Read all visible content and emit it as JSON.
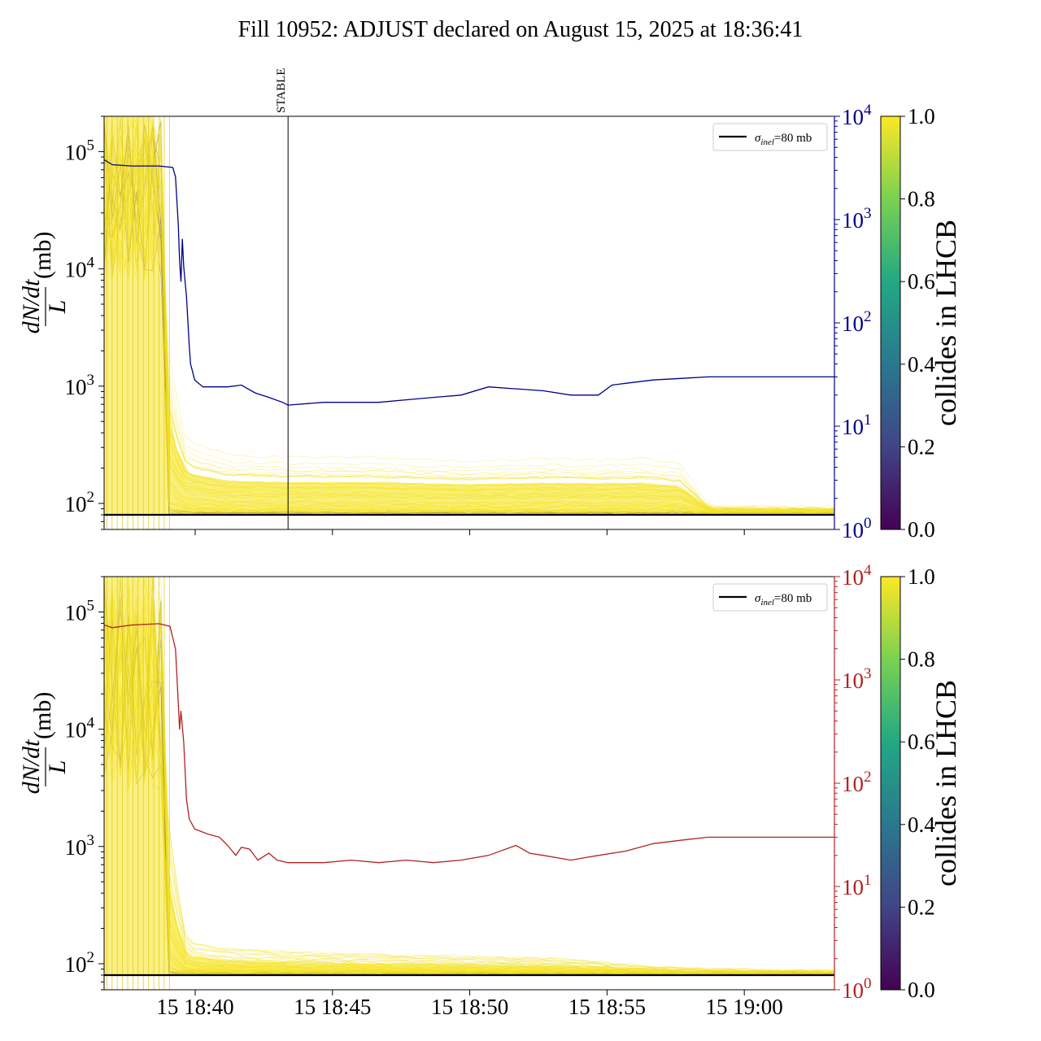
{
  "title": "Fill 10952: ADJUST declared on August 15, 2025 at 18:36:41",
  "ylabel": {
    "numerator": "dN/dt",
    "denominator": "L",
    "unit": "(mb)"
  },
  "legend_label": "σinel=80 mb",
  "legend_label_parts": {
    "sigma": "σ",
    "sub": "inel",
    "rest": "=80 mb"
  },
  "colorbar_label": "collides in LHCB",
  "colorbar_ticks": [
    "0.0",
    "0.2",
    "0.4",
    "0.6",
    "0.8",
    "1.0"
  ],
  "x_ticks": [
    "15 18:40",
    "15 18:45",
    "15 18:50",
    "15 18:55",
    "15 19:00"
  ],
  "left_ticks": {
    "exp": [
      "2",
      "3",
      "4",
      "5"
    ]
  },
  "right_ticks": {
    "exp": [
      "0",
      "1",
      "2",
      "3",
      "4"
    ]
  },
  "annotation": "STABLE",
  "colors": {
    "top_right_axis": "#00008b",
    "bottom_right_axis": "#b22222",
    "reference_line": "#000000",
    "viridis": [
      "#440154",
      "#414487",
      "#2a788e",
      "#22a884",
      "#7ad151",
      "#fde725"
    ]
  },
  "chart_data": [
    {
      "type": "line",
      "panel": "top",
      "x_unit": "minutes after 18:36:41",
      "xlim": [
        0,
        26.6
      ],
      "ylim_left": [
        60,
        200000
      ],
      "ylim_left_scale": "log",
      "ylim_right": [
        1,
        10000
      ],
      "ylim_right_scale": "log",
      "reference_line_y": 80,
      "stable_marker_x": 6.7,
      "bunch_band": {
        "x_end": 2.7,
        "range_pre": [
          8000,
          200000
        ],
        "envelope_max": [
          200000,
          200000,
          3000,
          500,
          350,
          330,
          330,
          300,
          320,
          310,
          320,
          280,
          100,
          98,
          97
        ],
        "envelope_x": [
          0,
          2.0,
          2.4,
          3.0,
          4.5,
          6.7,
          10,
          13,
          16,
          18,
          19.5,
          21,
          22,
          24,
          26.6
        ]
      },
      "series": [
        {
          "name": "right axis",
          "color": "#00008b",
          "points": [
            [
              0,
              3800
            ],
            [
              0.3,
              3400
            ],
            [
              1,
              3300
            ],
            [
              2,
              3300
            ],
            [
              2.5,
              3200
            ],
            [
              2.6,
              2600
            ],
            [
              2.7,
              900
            ],
            [
              2.75,
              400
            ],
            [
              2.8,
              250
            ],
            [
              2.85,
              650
            ],
            [
              2.9,
              350
            ],
            [
              3.0,
              180
            ],
            [
              3.1,
              60
            ],
            [
              3.15,
              40
            ],
            [
              3.3,
              28
            ],
            [
              3.6,
              24
            ],
            [
              4.0,
              24
            ],
            [
              4.5,
              24
            ],
            [
              5.0,
              25
            ],
            [
              5.5,
              21
            ],
            [
              6.0,
              19
            ],
            [
              6.5,
              17
            ],
            [
              6.7,
              16
            ],
            [
              8,
              17
            ],
            [
              10,
              17
            ],
            [
              12,
              19
            ],
            [
              13,
              20
            ],
            [
              14,
              24
            ],
            [
              15,
              23
            ],
            [
              16,
              22
            ],
            [
              17,
              20
            ],
            [
              18,
              20
            ],
            [
              18.5,
              25
            ],
            [
              19,
              26
            ],
            [
              20,
              28
            ],
            [
              21,
              29
            ],
            [
              22,
              30
            ],
            [
              26.6,
              30
            ]
          ]
        }
      ]
    },
    {
      "type": "line",
      "panel": "bottom",
      "x_unit": "minutes after 18:36:41",
      "xlim": [
        0,
        26.6
      ],
      "ylim_left": [
        60,
        200000
      ],
      "ylim_left_scale": "log",
      "ylim_right": [
        1,
        10000
      ],
      "ylim_right_scale": "log",
      "reference_line_y": 80,
      "bunch_band": {
        "x_end": 2.7,
        "range_pre": [
          3000,
          200000
        ],
        "envelope_max": [
          200000,
          200000,
          2000,
          180,
          150,
          140,
          130,
          125,
          120,
          110,
          100,
          95,
          92,
          90,
          88
        ],
        "envelope_x": [
          0,
          2.0,
          2.4,
          3.0,
          4.5,
          6.7,
          10,
          13,
          16,
          18,
          19.5,
          21,
          22,
          24,
          26.6
        ]
      },
      "series": [
        {
          "name": "right axis",
          "color": "#b22222",
          "points": [
            [
              0,
              3400
            ],
            [
              0.3,
              3200
            ],
            [
              1,
              3400
            ],
            [
              2,
              3500
            ],
            [
              2.4,
              3300
            ],
            [
              2.6,
              2000
            ],
            [
              2.7,
              600
            ],
            [
              2.75,
              330
            ],
            [
              2.8,
              500
            ],
            [
              2.9,
              250
            ],
            [
              3.0,
              70
            ],
            [
              3.1,
              45
            ],
            [
              3.3,
              36
            ],
            [
              3.8,
              32
            ],
            [
              4.2,
              30
            ],
            [
              4.5,
              25
            ],
            [
              4.8,
              20
            ],
            [
              5.0,
              24
            ],
            [
              5.3,
              23
            ],
            [
              5.6,
              18
            ],
            [
              6.0,
              21
            ],
            [
              6.3,
              18
            ],
            [
              6.7,
              17
            ],
            [
              8,
              17
            ],
            [
              9,
              18
            ],
            [
              10,
              17
            ],
            [
              11,
              18
            ],
            [
              12,
              17
            ],
            [
              13,
              18
            ],
            [
              14,
              20
            ],
            [
              15,
              25
            ],
            [
              15.5,
              21
            ],
            [
              16,
              20
            ],
            [
              17,
              18
            ],
            [
              17.5,
              19
            ],
            [
              18,
              20
            ],
            [
              19,
              22
            ],
            [
              20,
              26
            ],
            [
              21,
              28
            ],
            [
              22,
              30
            ],
            [
              26.6,
              30
            ]
          ]
        }
      ]
    }
  ]
}
